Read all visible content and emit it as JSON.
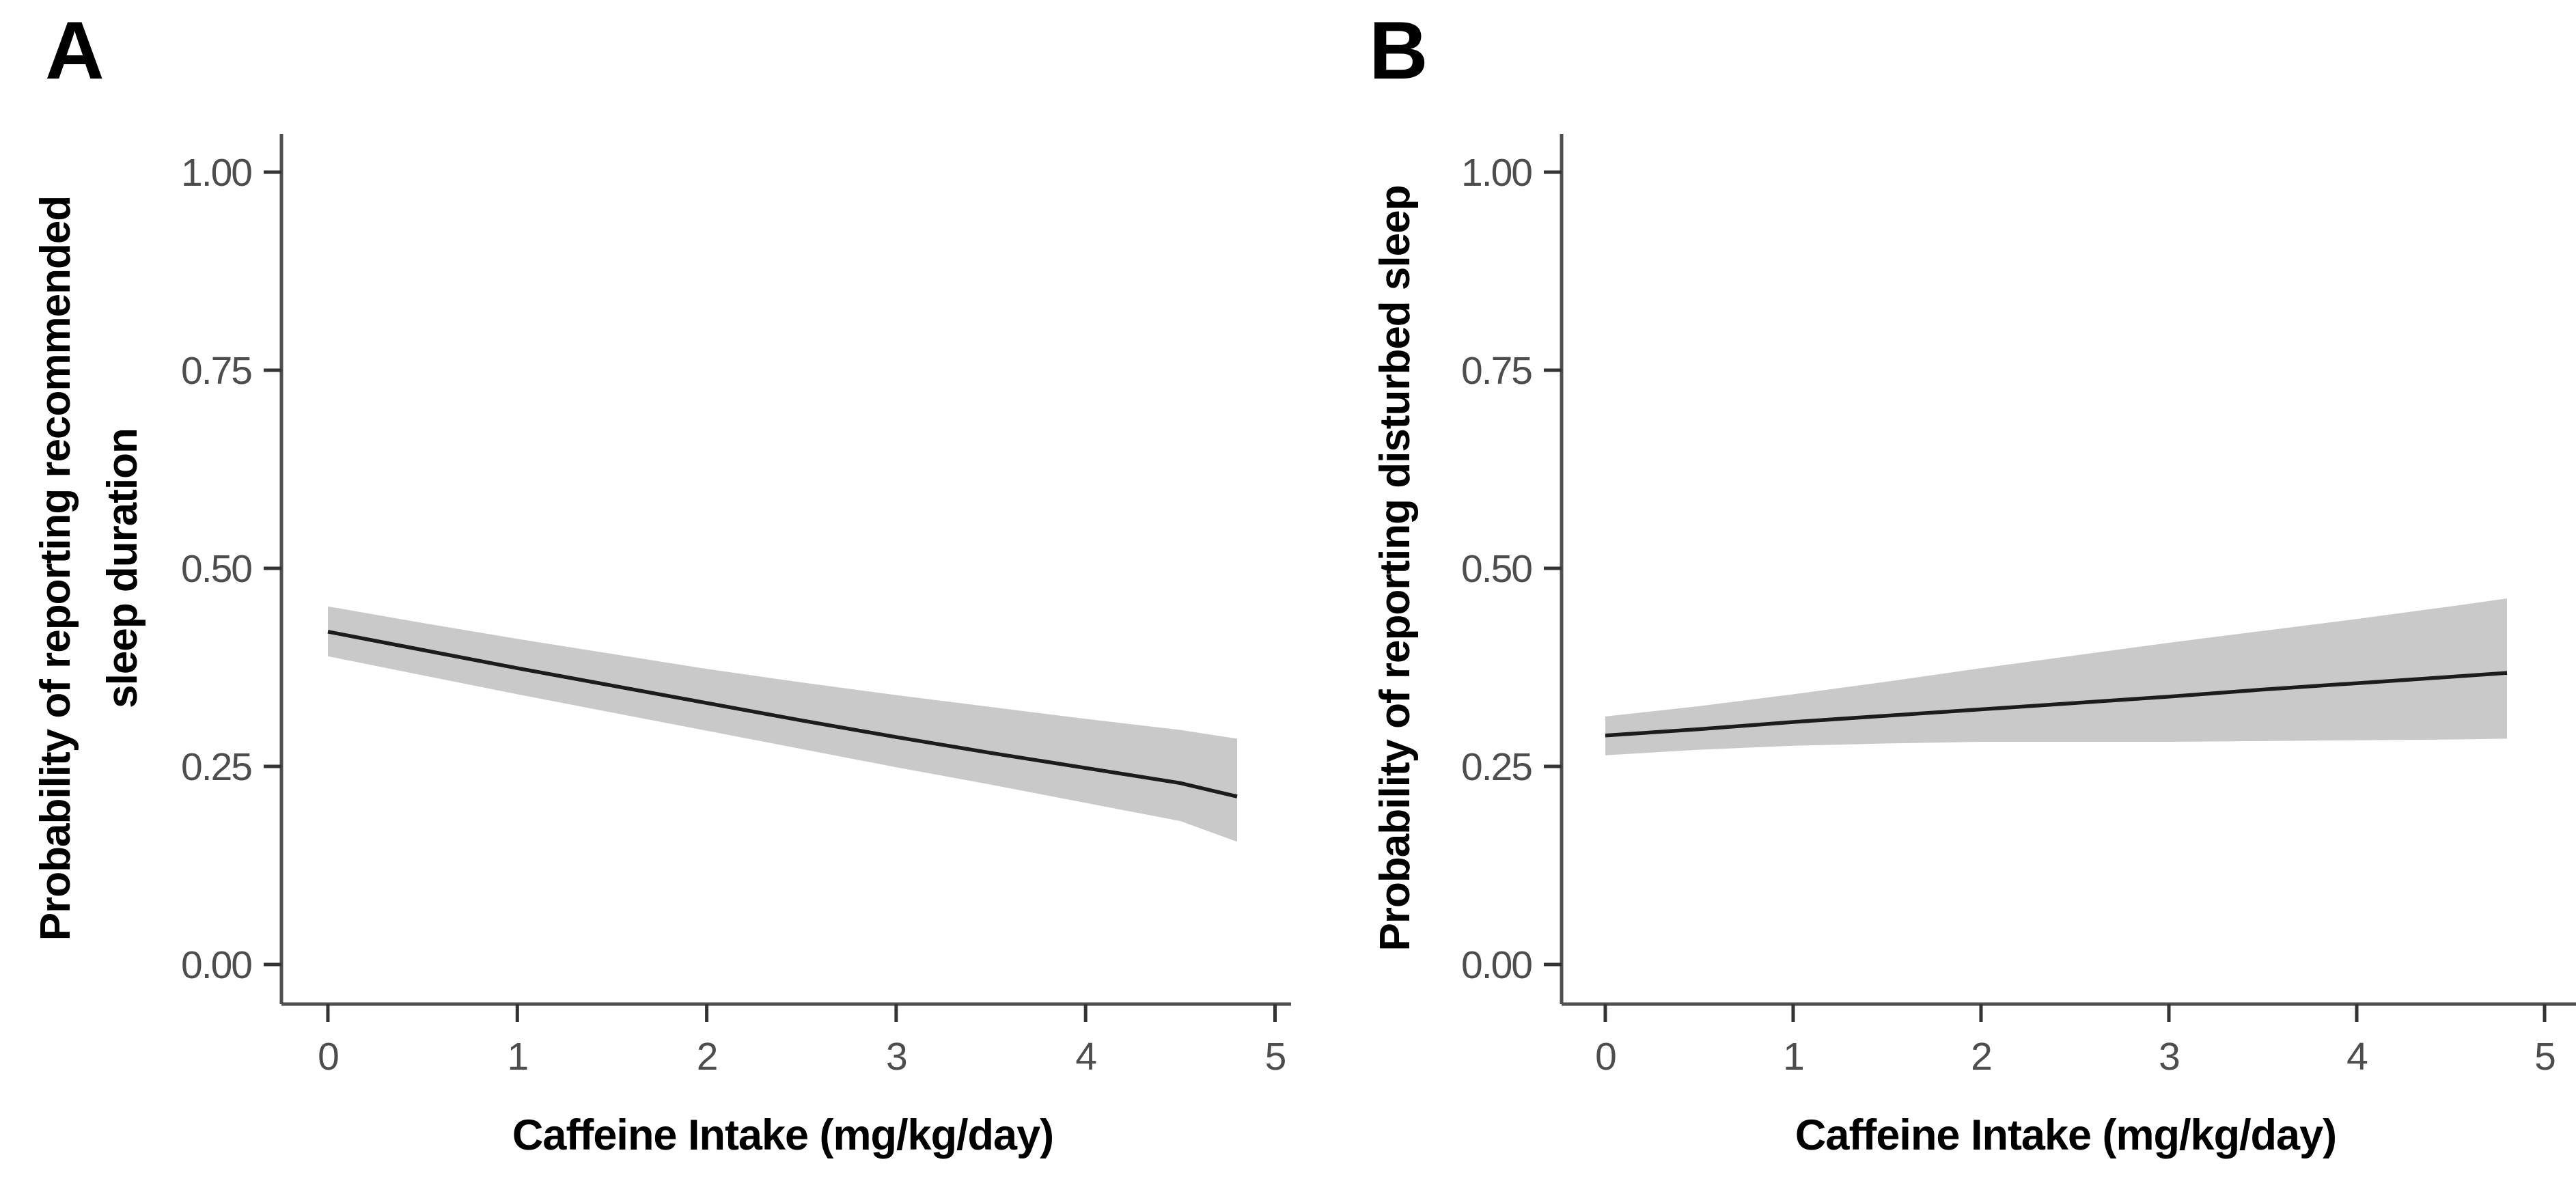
{
  "figure": {
    "background": "#ffffff",
    "panels": [
      {
        "label": "A",
        "y_axis_title_lines": [
          "Probability of reporting recommended",
          "sleep duration"
        ],
        "x_axis_title": "Caffeine Intake (mg/kg/day)"
      },
      {
        "label": "B",
        "y_axis_title_lines": [
          "Probability of reporting disturbed sleep"
        ],
        "x_axis_title": "Caffeine Intake (mg/kg/day)"
      }
    ]
  },
  "chart_data": [
    {
      "type": "line",
      "panel": "A",
      "title": "",
      "xlabel": "Caffeine Intake (mg/kg/day)",
      "ylabel": "Probability of reporting recommended sleep duration",
      "x": [
        0,
        0.5,
        1,
        1.5,
        2,
        2.5,
        3,
        3.5,
        4,
        4.5,
        4.8
      ],
      "series": [
        {
          "name": "predicted_probability",
          "values": [
            0.42,
            0.397,
            0.374,
            0.352,
            0.33,
            0.308,
            0.287,
            0.267,
            0.248,
            0.229,
            0.212
          ]
        },
        {
          "name": "ci_upper",
          "values": [
            0.452,
            0.431,
            0.411,
            0.392,
            0.373,
            0.356,
            0.34,
            0.325,
            0.31,
            0.296,
            0.285
          ]
        },
        {
          "name": "ci_lower",
          "values": [
            0.389,
            0.365,
            0.341,
            0.318,
            0.295,
            0.272,
            0.249,
            0.227,
            0.204,
            0.181,
            0.155
          ]
        }
      ],
      "xlim": [
        0,
        5
      ],
      "ylim": [
        0,
        1
      ],
      "xticks": [
        "0",
        "1",
        "2",
        "3",
        "4",
        "5"
      ],
      "yticks": [
        "0.00",
        "0.25",
        "0.50",
        "0.75",
        "1.00"
      ],
      "grid": false,
      "legend": false,
      "colors": {
        "band": "#c9c9c9",
        "line": "#1c1c1c",
        "axis": "#4f4f4f",
        "tick": "#333333",
        "tick_label": "#4d4d4d"
      }
    },
    {
      "type": "line",
      "panel": "B",
      "title": "",
      "xlabel": "Caffeine Intake (mg/kg/day)",
      "ylabel": "Probability of reporting disturbed sleep",
      "x": [
        0,
        0.5,
        1,
        1.5,
        2,
        2.5,
        3,
        3.5,
        4,
        4.5,
        4.8
      ],
      "series": [
        {
          "name": "predicted_probability",
          "values": [
            0.289,
            0.297,
            0.306,
            0.314,
            0.322,
            0.33,
            0.338,
            0.347,
            0.355,
            0.363,
            0.368
          ]
        },
        {
          "name": "ci_upper",
          "values": [
            0.313,
            0.326,
            0.341,
            0.357,
            0.374,
            0.39,
            0.406,
            0.421,
            0.436,
            0.452,
            0.462
          ]
        },
        {
          "name": "ci_lower",
          "values": [
            0.264,
            0.271,
            0.276,
            0.279,
            0.281,
            0.281,
            0.281,
            0.282,
            0.283,
            0.284,
            0.285
          ]
        }
      ],
      "xlim": [
        0,
        5
      ],
      "ylim": [
        0,
        1
      ],
      "xticks": [
        "0",
        "1",
        "2",
        "3",
        "4",
        "5"
      ],
      "yticks": [
        "0.00",
        "0.25",
        "0.50",
        "0.75",
        "1.00"
      ],
      "grid": false,
      "legend": false,
      "colors": {
        "band": "#c9c9c9",
        "line": "#1c1c1c",
        "axis": "#4f4f4f",
        "tick": "#333333",
        "tick_label": "#4d4d4d"
      }
    }
  ]
}
